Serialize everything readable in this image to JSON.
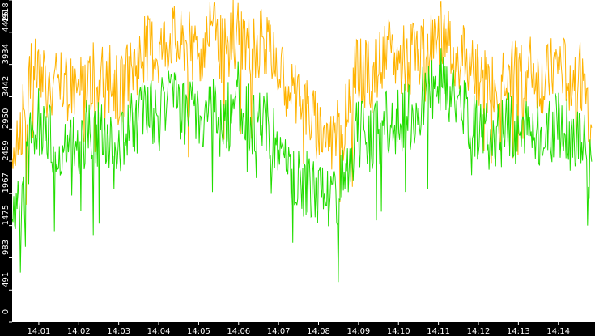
{
  "chart_data": {
    "type": "line",
    "title": "",
    "xlabel": "",
    "ylabel": "",
    "grid": false,
    "legend": "none",
    "background": "#ffffff",
    "axis_band_color": "#000000",
    "tick_label_color": "#ffffff",
    "y_ticks": [
      0,
      491,
      983,
      1475,
      1967,
      2459,
      2950,
      3442,
      3934,
      4426,
      4918
    ],
    "x_ticks": [
      "14:01",
      "14:02",
      "14:03",
      "14:04",
      "14:05",
      "14:06",
      "14:07",
      "14:08",
      "14:09",
      "14:10",
      "14:11",
      "14:12",
      "14:13",
      "14:14"
    ],
    "ylim": [
      0,
      4918
    ],
    "xlim": [
      "14:00:20",
      "14:14:55"
    ],
    "series": [
      {
        "color": "#ffb300",
        "x": [
          "14:00:20",
          "14:00:30",
          "14:00:40",
          "14:00:50",
          "14:01:00",
          "14:01:10",
          "14:01:20",
          "14:01:30",
          "14:01:40",
          "14:01:50",
          "14:02:00",
          "14:02:10",
          "14:02:20",
          "14:02:30",
          "14:02:40",
          "14:02:50",
          "14:03:00",
          "14:03:10",
          "14:03:20",
          "14:03:30",
          "14:03:40",
          "14:03:50",
          "14:04:00",
          "14:04:10",
          "14:04:20",
          "14:04:30",
          "14:04:40",
          "14:04:50",
          "14:05:00",
          "14:05:10",
          "14:05:20",
          "14:05:30",
          "14:05:40",
          "14:05:50",
          "14:06:00",
          "14:06:10",
          "14:06:20",
          "14:06:30",
          "14:06:40",
          "14:06:50",
          "14:07:00",
          "14:07:10",
          "14:07:20",
          "14:07:30",
          "14:07:40",
          "14:07:50",
          "14:08:00",
          "14:08:10",
          "14:08:20",
          "14:08:30",
          "14:08:40",
          "14:08:50",
          "14:09:00",
          "14:09:10",
          "14:09:20",
          "14:09:30",
          "14:09:40",
          "14:09:50",
          "14:10:00",
          "14:10:10",
          "14:10:20",
          "14:10:30",
          "14:10:40",
          "14:10:50",
          "14:11:00",
          "14:11:10",
          "14:11:20",
          "14:11:30",
          "14:11:40",
          "14:11:50",
          "14:12:00",
          "14:12:10",
          "14:12:20",
          "14:12:30",
          "14:12:40",
          "14:12:50",
          "14:13:00",
          "14:13:10",
          "14:13:20",
          "14:13:30",
          "14:13:40",
          "14:13:50",
          "14:14:00",
          "14:14:10",
          "14:14:20",
          "14:14:30",
          "14:14:40",
          "14:14:50"
        ],
        "values": [
          2600,
          2900,
          3300,
          3800,
          3900,
          3700,
          3500,
          3600,
          3550,
          3650,
          3500,
          3700,
          3800,
          3600,
          3700,
          3750,
          3500,
          3650,
          3900,
          4000,
          4150,
          4200,
          4100,
          4300,
          4400,
          4200,
          4300,
          4250,
          4100,
          4300,
          4400,
          4250,
          4100,
          4350,
          4500,
          4300,
          4150,
          4200,
          4350,
          4000,
          3850,
          3700,
          3600,
          3400,
          3300,
          3100,
          3000,
          2900,
          2800,
          2950,
          3200,
          3500,
          3900,
          3800,
          3700,
          3900,
          4000,
          4100,
          3950,
          4050,
          4000,
          4100,
          4200,
          4300,
          4350,
          4400,
          4200,
          4100,
          4000,
          3900,
          3800,
          3700,
          3650,
          3700,
          3900,
          3800,
          3800,
          3750,
          3900,
          3700,
          3650,
          3800,
          3950,
          3800,
          3750,
          3900,
          3600,
          2900
        ]
      },
      {
        "color": "#22dd00",
        "x": [
          "14:00:20",
          "14:00:30",
          "14:00:40",
          "14:00:50",
          "14:01:00",
          "14:01:10",
          "14:01:20",
          "14:01:30",
          "14:01:40",
          "14:01:50",
          "14:02:00",
          "14:02:10",
          "14:02:20",
          "14:02:30",
          "14:02:40",
          "14:02:50",
          "14:03:00",
          "14:03:10",
          "14:03:20",
          "14:03:30",
          "14:03:40",
          "14:03:50",
          "14:04:00",
          "14:04:10",
          "14:04:20",
          "14:04:30",
          "14:04:40",
          "14:04:50",
          "14:05:00",
          "14:05:10",
          "14:05:20",
          "14:05:30",
          "14:05:40",
          "14:05:50",
          "14:06:00",
          "14:06:10",
          "14:06:20",
          "14:06:30",
          "14:06:40",
          "14:06:50",
          "14:07:00",
          "14:07:10",
          "14:07:20",
          "14:07:30",
          "14:07:40",
          "14:07:50",
          "14:08:00",
          "14:08:10",
          "14:08:20",
          "14:08:30",
          "14:08:40",
          "14:08:50",
          "14:09:00",
          "14:09:10",
          "14:09:20",
          "14:09:30",
          "14:09:40",
          "14:09:50",
          "14:10:00",
          "14:10:10",
          "14:10:20",
          "14:10:30",
          "14:10:40",
          "14:10:50",
          "14:11:00",
          "14:11:10",
          "14:11:20",
          "14:11:30",
          "14:11:40",
          "14:11:50",
          "14:12:00",
          "14:12:10",
          "14:12:20",
          "14:12:30",
          "14:12:40",
          "14:12:50",
          "14:13:00",
          "14:13:10",
          "14:13:20",
          "14:13:30",
          "14:13:40",
          "14:13:50",
          "14:14:00",
          "14:14:10",
          "14:14:20",
          "14:14:30",
          "14:14:40",
          "14:14:50"
        ],
        "values": [
          1700,
          1600,
          2200,
          2900,
          3100,
          2900,
          2700,
          2800,
          2600,
          2800,
          2700,
          2900,
          3000,
          2800,
          2900,
          2900,
          2700,
          2800,
          3000,
          3100,
          3300,
          3200,
          3100,
          3300,
          3400,
          3200,
          3100,
          3200,
          3100,
          3300,
          3400,
          3200,
          3100,
          3300,
          3500,
          3200,
          3000,
          3000,
          3100,
          2800,
          2600,
          2400,
          2300,
          2200,
          2100,
          2000,
          2000,
          1950,
          1900,
          2000,
          2300,
          2600,
          2900,
          2850,
          2800,
          2900,
          3000,
          3100,
          3000,
          3100,
          3100,
          3300,
          3400,
          3500,
          3600,
          3700,
          3500,
          3300,
          3200,
          3100,
          3000,
          2900,
          2800,
          2850,
          3000,
          2950,
          2900,
          2850,
          3000,
          2900,
          2800,
          2900,
          3000,
          2950,
          2800,
          2900,
          2700,
          2100
        ]
      }
    ]
  }
}
